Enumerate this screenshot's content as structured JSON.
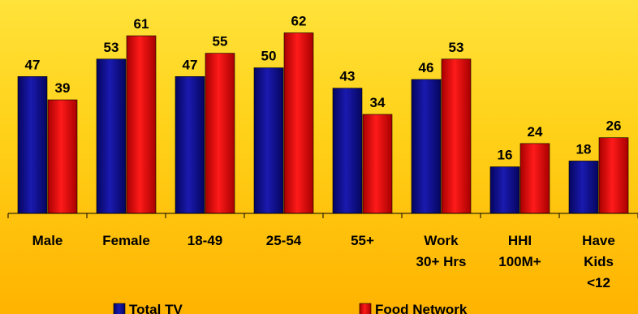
{
  "colors": {
    "total_tv": "#0A0A8C",
    "food_network": "#E00000",
    "background": "#FFD21A"
  },
  "chart_data": {
    "type": "bar",
    "title": "",
    "xlabel": "",
    "ylabel": "",
    "ylim": [
      0,
      70
    ],
    "grid": false,
    "legend": "bottom",
    "categories": [
      [
        "Male"
      ],
      [
        "Female"
      ],
      [
        "18-49"
      ],
      [
        "25-54"
      ],
      [
        "55+"
      ],
      [
        "Work",
        "30+ Hrs"
      ],
      [
        "HHI",
        "100M+"
      ],
      [
        "Have",
        "Kids",
        "<12"
      ]
    ],
    "series": [
      {
        "name": "Total TV",
        "color": "#0A0A8C",
        "values": [
          47,
          53,
          47,
          50,
          43,
          46,
          16,
          18
        ]
      },
      {
        "name": "Food Network",
        "color": "#E00000",
        "values": [
          39,
          61,
          55,
          62,
          34,
          53,
          24,
          26
        ]
      }
    ]
  }
}
